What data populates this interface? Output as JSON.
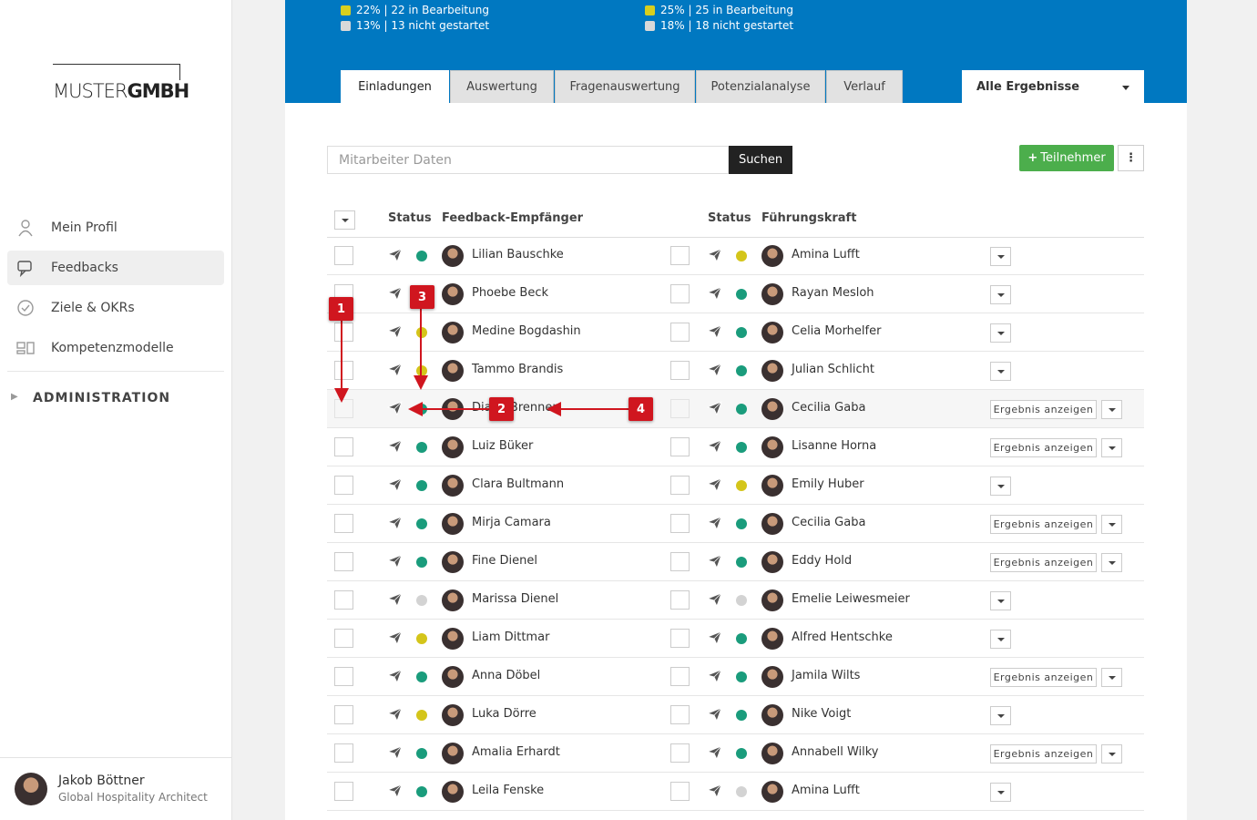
{
  "sidebar": {
    "logo": {
      "left": "MUSTER",
      "right": "GMBH"
    },
    "nav": [
      "Mein Profil",
      "Feedbacks",
      "Ziele & OKRs",
      "Kompetenzmodelle"
    ],
    "active_nav": 1,
    "section": "ADMINISTRATION",
    "user": {
      "name": "Jakob Böttner",
      "role": "Global Hospitality Architect"
    }
  },
  "header": {
    "stats": [
      [
        {
          "text": "22% | 22 in Bearbeitung",
          "color": "#d8cf1e"
        },
        {
          "text": "13% | 13 nicht gestartet",
          "color": "#d9d9d9"
        }
      ],
      [
        {
          "text": "25% | 25 in Bearbeitung",
          "color": "#d8cf1e"
        },
        {
          "text": "18% | 18 nicht gestartet",
          "color": "#d9d9d9"
        }
      ]
    ],
    "tabs": [
      "Einladungen",
      "Auswertung",
      "Fragenauswertung",
      "Potenzialanalyse",
      "Verlauf"
    ],
    "active_tab": 0,
    "filter": "Alle Ergebnisse"
  },
  "toolbar": {
    "search_placeholder": "Mitarbeiter Daten",
    "search_button": "Suchen",
    "add_button": "Teilnehmer"
  },
  "table": {
    "columns": [
      "Status",
      "Feedback-Empfänger",
      "Status",
      "Führungskraft"
    ],
    "rows": [
      {
        "recipient": "Lilian Bauschke",
        "recipient_status": "green",
        "manager": "Amina Lufft",
        "manager_status": "yellow"
      },
      {
        "recipient": "Phoebe Beck",
        "recipient_status": "green",
        "manager": "Rayan Mesloh",
        "manager_status": "green"
      },
      {
        "recipient": "Medine Bogdashin",
        "recipient_status": "yellow",
        "manager": "Celia Morhelfer",
        "manager_status": "green"
      },
      {
        "recipient": "Tammo Brandis",
        "recipient_status": "yellow",
        "manager": "Julian Schlicht",
        "manager_status": "green"
      },
      {
        "recipient": "Diana Brenner",
        "recipient_status": "green",
        "manager": "Cecilia Gaba",
        "manager_status": "green",
        "action": "Ergebnis anzeigen",
        "highlighted": true
      },
      {
        "recipient": "Luiz Büker",
        "recipient_status": "green",
        "manager": "Lisanne Horna",
        "manager_status": "green",
        "action": "Ergebnis anzeigen"
      },
      {
        "recipient": "Clara Bultmann",
        "recipient_status": "green",
        "manager": "Emily Huber",
        "manager_status": "yellow"
      },
      {
        "recipient": "Mirja Camara",
        "recipient_status": "green",
        "manager": "Cecilia Gaba",
        "manager_status": "green",
        "action": "Ergebnis anzeigen"
      },
      {
        "recipient": "Fine Dienel",
        "recipient_status": "green",
        "manager": "Eddy Hold",
        "manager_status": "green",
        "action": "Ergebnis anzeigen"
      },
      {
        "recipient": "Marissa Dienel",
        "recipient_status": "gray",
        "manager": "Emelie Leiwesmeier",
        "manager_status": "gray"
      },
      {
        "recipient": "Liam Dittmar",
        "recipient_status": "yellow",
        "manager": "Alfred Hentschke",
        "manager_status": "green"
      },
      {
        "recipient": "Anna Döbel",
        "recipient_status": "green",
        "manager": "Jamila Wilts",
        "manager_status": "green",
        "action": "Ergebnis anzeigen"
      },
      {
        "recipient": "Luka Dörre",
        "recipient_status": "yellow",
        "manager": "Nike Voigt",
        "manager_status": "green"
      },
      {
        "recipient": "Amalia Erhardt",
        "recipient_status": "green",
        "manager": "Annabell Wilky",
        "manager_status": "green",
        "action": "Ergebnis anzeigen"
      },
      {
        "recipient": "Leila Fenske",
        "recipient_status": "green",
        "manager": "Amina Lufft",
        "manager_status": "gray"
      }
    ]
  },
  "annotations": [
    "1",
    "2",
    "3",
    "4"
  ]
}
